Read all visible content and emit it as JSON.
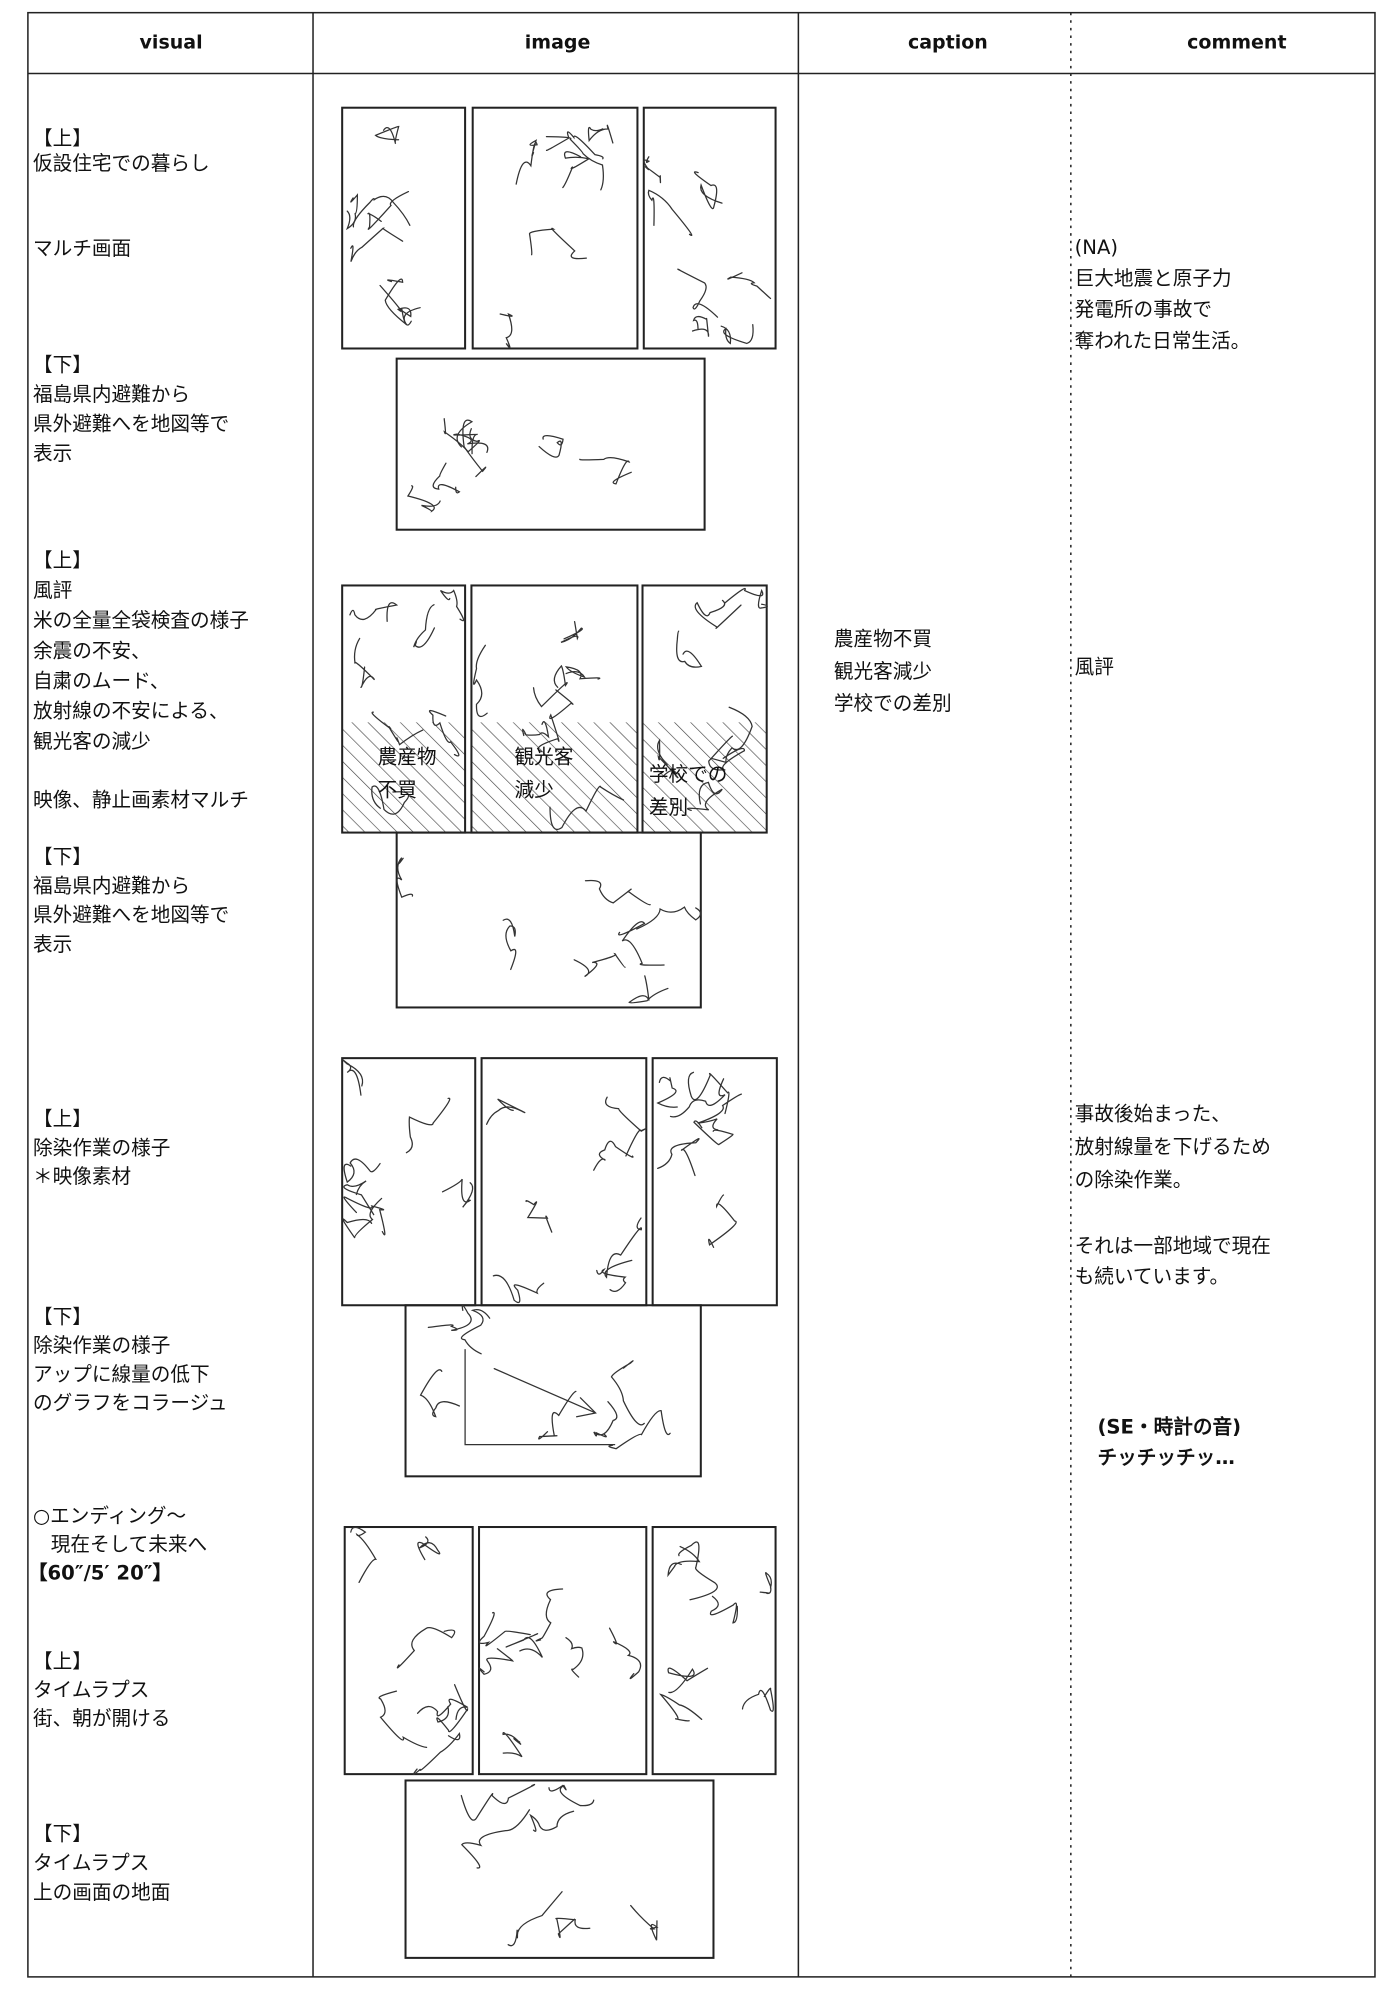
{
  "header": {
    "visual": "visual",
    "image": "image",
    "caption": "caption",
    "comment": "comment"
  },
  "visual": [
    {
      "lines": [
        "【上】",
        "仮設住宅での暮らし"
      ]
    },
    {
      "lines": [
        "マルチ画面"
      ]
    },
    {
      "lines": [
        "【下】",
        "福島県内避難から",
        "県外避難へを地図等で",
        "表示"
      ]
    },
    {
      "lines": [
        "【上】",
        "風評",
        "米の全量全袋検査の様子",
        "余震の不安、",
        "自粛のムード、",
        "放射線の不安による、",
        "観光客の減少"
      ]
    },
    {
      "lines": [
        "映像、静止画素材マルチ"
      ]
    },
    {
      "lines": [
        "【下】",
        "福島県内避難から",
        "県外避難へを地図等で",
        "表示"
      ]
    },
    {
      "lines": [
        "【上】",
        "除染作業の様子",
        "＊映像素材"
      ]
    },
    {
      "lines": [
        "【下】",
        "除染作業の様子",
        "アップに線量の低下",
        "のグラフをコラージュ"
      ]
    },
    {
      "lines": [
        "○エンディング～",
        "現在そして未来へ",
        "【60″/5′ 20″】"
      ]
    },
    {
      "lines": [
        "【上】",
        "タイムラプス",
        "街、朝が開ける"
      ]
    },
    {
      "lines": [
        "【下】",
        "タイムラプス",
        "上の画面の地面"
      ]
    }
  ],
  "frame_labels": [
    [
      "農産物",
      "不買"
    ],
    [
      "観光客",
      "減少"
    ],
    [
      "学校での",
      "差別"
    ]
  ],
  "caption": [
    "農産物不買",
    "観光客減少",
    "学校での差別"
  ],
  "comment": [
    {
      "lines": [
        "(NA)",
        "巨大地震と原子力",
        "発電所の事故で",
        "奪われた日常生活。"
      ]
    },
    {
      "lines": [
        "風評"
      ]
    },
    {
      "lines": [
        "事故後始まった、",
        "放射線量を下げるため",
        "の除染作業。"
      ]
    },
    {
      "lines": [
        "それは一部地域で現在",
        "も続いています。"
      ]
    },
    {
      "lines": [
        "(SE・時計の音)",
        "チッチッチッ…"
      ]
    }
  ]
}
